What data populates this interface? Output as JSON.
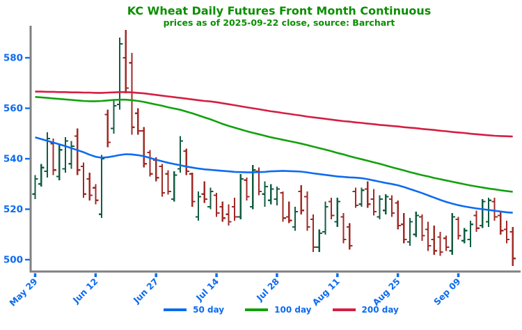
{
  "header": {
    "title": "KC Wheat Daily Futures Front Month Continuous",
    "subtitle": "prices as of 2025-09-22 close, source: Barchart"
  },
  "colors": {
    "title_green": "#0a8f00",
    "axis_blue": "#0d6bf0",
    "ma50": "#0d6bf0",
    "ma100": "#12a10d",
    "ma200": "#d41f42",
    "bar_up": "#115c41",
    "bar_down": "#9e2a25",
    "spine": "#808080"
  },
  "legend": [
    {
      "label": "50 day",
      "color_key": "ma50"
    },
    {
      "label": "100 day",
      "color_key": "ma100"
    },
    {
      "label": "200 day",
      "color_key": "ma200"
    }
  ],
  "chart_data": {
    "type": "ohlc-bar-with-moving-averages",
    "title": "KC Wheat Daily Futures Front Month Continuous",
    "subtitle": "prices as of 2025-09-22 close, source: Barchart",
    "ylabel": "",
    "xlabel": "",
    "grid": false,
    "legend_position": "bottom-center",
    "ylim": [
      494,
      594
    ],
    "yticks": [
      500,
      520,
      540,
      560,
      580
    ],
    "xticks": [
      {
        "label": "May 29",
        "index": 0
      },
      {
        "label": "Jun 12",
        "index": 10
      },
      {
        "label": "Jun 27",
        "index": 20
      },
      {
        "label": "Jul 14",
        "index": 30
      },
      {
        "label": "Jul 28",
        "index": 40
      },
      {
        "label": "Aug 11",
        "index": 50
      },
      {
        "label": "Aug 25",
        "index": 60
      },
      {
        "label": "Sep 09",
        "index": 70
      }
    ],
    "bars_format": [
      "date",
      "open",
      "high",
      "low",
      "close"
    ],
    "bars": [
      [
        "May 29",
        526,
        533.5,
        524,
        532
      ],
      [
        "May 30",
        530,
        538,
        529,
        536.5
      ],
      [
        "Jun 2",
        535,
        550.5,
        532.5,
        548
      ],
      [
        "Jun 3",
        546,
        548,
        533.5,
        535.5
      ],
      [
        "Jun 4",
        533,
        545.5,
        531.5,
        543.5
      ],
      [
        "Jun 5",
        536,
        548.5,
        534.5,
        547
      ],
      [
        "Jun 6",
        538,
        547,
        536,
        545
      ],
      [
        "Jun 9",
        549,
        552,
        533.5,
        535.5
      ],
      [
        "Jun 10",
        537,
        538.5,
        524.5,
        526
      ],
      [
        "Jun 11",
        532,
        534.5,
        523.5,
        525.5
      ],
      [
        "Jun 12",
        528.5,
        530,
        522,
        523.5
      ],
      [
        "Jun 13",
        518,
        541.5,
        516.5,
        540
      ],
      [
        "Jun 16",
        557.5,
        559.5,
        544.5,
        546.5
      ],
      [
        "Jun 17",
        552,
        563,
        550,
        561
      ],
      [
        "Jun 18",
        561.5,
        588,
        559.5,
        585.5
      ],
      [
        "Jun 20",
        580,
        591,
        566,
        568
      ],
      [
        "Jun 23",
        578,
        582,
        549.5,
        552.5
      ],
      [
        "Jun 24",
        558,
        560,
        549.5,
        551
      ],
      [
        "Jun 25",
        551,
        552.5,
        536.5,
        538
      ],
      [
        "Jun 26",
        542.5,
        543.5,
        533,
        534
      ],
      [
        "Jun 27",
        539.5,
        540.5,
        531,
        532.5
      ],
      [
        "Jun 30",
        537,
        538,
        525,
        526.5
      ],
      [
        "Jul 1",
        534,
        535.5,
        525.8,
        527
      ],
      [
        "Jul 2",
        524,
        535,
        523,
        533.5
      ],
      [
        "Jul 3",
        536,
        549,
        534.5,
        547
      ],
      [
        "Jul 7",
        543,
        544,
        533.5,
        535
      ],
      [
        "Jul 8",
        534,
        534.5,
        521,
        523
      ],
      [
        "Jul 9",
        517,
        527,
        515.5,
        525
      ],
      [
        "Jul 10",
        526,
        531,
        522.5,
        524
      ],
      [
        "Jul 11",
        521,
        528.5,
        520,
        527
      ],
      [
        "Jul 14",
        525.5,
        526.5,
        517,
        518.5
      ],
      [
        "Jul 15",
        521,
        523,
        515,
        516.5
      ],
      [
        "Jul 16",
        518,
        522,
        513.5,
        515
      ],
      [
        "Jul 17",
        521,
        524.5,
        515.5,
        517
      ],
      [
        "Jul 18",
        517,
        534,
        516,
        532
      ],
      [
        "Jul 21",
        531.5,
        532.5,
        523.5,
        525
      ],
      [
        "Jul 22",
        521,
        537.5,
        520,
        535.5
      ],
      [
        "Jul 23",
        535,
        536.5,
        525.5,
        527
      ],
      [
        "Jul 24",
        526,
        531,
        521,
        529
      ],
      [
        "Jul 25",
        523.5,
        530,
        522,
        528
      ],
      [
        "Jul 28",
        524,
        529,
        521.5,
        528
      ],
      [
        "Jul 29",
        526.5,
        527,
        515,
        516.5
      ],
      [
        "Jul 30",
        517,
        523,
        514.5,
        515.5
      ],
      [
        "Jul 31",
        513,
        521,
        511.5,
        519
      ],
      [
        "Aug 1",
        527,
        529.5,
        518,
        519.5
      ],
      [
        "Aug 4",
        525,
        527,
        511.5,
        513
      ],
      [
        "Aug 5",
        516,
        518,
        503,
        505
      ],
      [
        "Aug 6",
        505,
        512,
        503,
        510.5
      ],
      [
        "Aug 7",
        511,
        523,
        510,
        521
      ],
      [
        "Aug 8",
        523,
        524.5,
        516,
        517.5
      ],
      [
        "Aug 11",
        515,
        524.5,
        513,
        523
      ],
      [
        "Aug 12",
        517,
        518.5,
        506.5,
        508
      ],
      [
        "Aug 13",
        513,
        514.5,
        504,
        505.5
      ],
      [
        "Aug 14",
        527,
        528.5,
        520.5,
        521.5
      ],
      [
        "Aug 15",
        522,
        528.5,
        521,
        527.5
      ],
      [
        "Aug 18",
        528,
        531,
        520.5,
        522
      ],
      [
        "Aug 19",
        524,
        528,
        517.5,
        519
      ],
      [
        "Aug 20",
        517,
        525.5,
        516,
        524
      ],
      [
        "Aug 21",
        519.5,
        526,
        518,
        525
      ],
      [
        "Aug 22",
        524,
        525.5,
        517,
        518.5
      ],
      [
        "Aug 25",
        522.5,
        523.5,
        512,
        513.5
      ],
      [
        "Aug 26",
        514,
        518.5,
        506.5,
        508
      ],
      [
        "Aug 27",
        507,
        516.5,
        505.5,
        515
      ],
      [
        "Aug 28",
        510,
        519,
        509,
        517.5
      ],
      [
        "Aug 29",
        517,
        518,
        507.5,
        509.5
      ],
      [
        "Sep 2",
        512,
        515,
        503.5,
        505.5
      ],
      [
        "Sep 3",
        508,
        513.5,
        502,
        503.5
      ],
      [
        "Sep 4",
        509,
        511,
        501.5,
        503
      ],
      [
        "Sep 5",
        508.5,
        509.5,
        503.5,
        505
      ],
      [
        "Sep 8",
        503.5,
        518.5,
        502,
        517
      ],
      [
        "Sep 9",
        516,
        517,
        508,
        509.5
      ],
      [
        "Sep 10",
        507.5,
        512.5,
        506.5,
        511.5
      ],
      [
        "Sep 11",
        508,
        515.5,
        505,
        514
      ],
      [
        "Sep 12",
        517.5,
        519.5,
        511,
        512.5
      ],
      [
        "Sep 15",
        513.5,
        524,
        512.5,
        523
      ],
      [
        "Sep 16",
        515,
        524.5,
        513,
        523.5
      ],
      [
        "Sep 17",
        523,
        524.5,
        515.5,
        517
      ],
      [
        "Sep 18",
        517.5,
        519,
        510,
        511.5
      ],
      [
        "Sep 19",
        512,
        515.5,
        506.5,
        508
      ],
      [
        "Sep 22",
        511,
        513,
        497.5,
        500.5
      ]
    ],
    "ma50": [
      548.5,
      547.8,
      547.1,
      546.4,
      545.7,
      545.0,
      544.2,
      543.4,
      542.6,
      541.6,
      540.8,
      540.4,
      540.6,
      541.0,
      541.5,
      541.8,
      541.7,
      541.4,
      541.0,
      540.3,
      539.6,
      539.0,
      538.4,
      537.9,
      537.4,
      536.9,
      536.5,
      536.1,
      535.8,
      535.6,
      535.4,
      535.2,
      535.0,
      534.8,
      534.7,
      534.6,
      534.6,
      534.7,
      534.8,
      535.0,
      535.1,
      535.2,
      535.1,
      535.0,
      534.9,
      534.6,
      534.2,
      533.9,
      533.6,
      533.3,
      533.0,
      532.8,
      532.6,
      532.5,
      532.3,
      531.9,
      531.4,
      530.9,
      530.4,
      530.0,
      529.5,
      528.8,
      528.0,
      527.2,
      526.4,
      525.5,
      524.6,
      523.7,
      522.9,
      522.2,
      521.6,
      521.1,
      520.7,
      520.3,
      520.0,
      519.7,
      519.4,
      519.1,
      518.8,
      518.6
    ],
    "ma100": [
      564.5,
      564.3,
      564.1,
      563.9,
      563.7,
      563.5,
      563.3,
      563.1,
      562.9,
      562.8,
      562.8,
      562.9,
      563.1,
      563.3,
      563.4,
      563.4,
      563.2,
      562.9,
      562.5,
      562.0,
      561.5,
      561.0,
      560.4,
      559.9,
      559.4,
      558.7,
      558.0,
      557.2,
      556.4,
      555.6,
      554.7,
      553.8,
      553.0,
      552.3,
      551.6,
      550.9,
      550.3,
      549.7,
      549.1,
      548.5,
      548.0,
      547.5,
      547.0,
      546.5,
      546.0,
      545.4,
      544.8,
      544.2,
      543.6,
      543.0,
      542.3,
      541.7,
      541.0,
      540.4,
      539.8,
      539.2,
      538.6,
      538.0,
      537.3,
      536.6,
      536.0,
      535.4,
      534.7,
      534.1,
      533.5,
      533.0,
      532.4,
      531.9,
      531.4,
      530.9,
      530.4,
      529.9,
      529.4,
      529.0,
      528.6,
      528.2,
      527.9,
      527.5,
      527.2,
      526.9
    ],
    "ma200": [
      566.6,
      566.6,
      566.5,
      566.5,
      566.4,
      566.4,
      566.3,
      566.3,
      566.2,
      566.2,
      566.1,
      566.1,
      566.2,
      566.3,
      566.4,
      566.4,
      566.3,
      566.1,
      565.9,
      565.6,
      565.3,
      565.0,
      564.7,
      564.4,
      564.1,
      563.8,
      563.5,
      563.2,
      562.9,
      562.7,
      562.4,
      562.0,
      561.6,
      561.2,
      560.8,
      560.4,
      560.0,
      559.6,
      559.2,
      558.8,
      558.5,
      558.1,
      557.8,
      557.4,
      557.1,
      556.7,
      556.4,
      556.1,
      555.8,
      555.5,
      555.2,
      554.9,
      554.7,
      554.4,
      554.2,
      553.9,
      553.7,
      553.4,
      553.2,
      553.0,
      552.8,
      552.5,
      552.3,
      552.1,
      551.8,
      551.6,
      551.4,
      551.1,
      550.9,
      550.6,
      550.4,
      550.2,
      549.9,
      549.7,
      549.5,
      549.3,
      549.1,
      549.0,
      548.9,
      548.8
    ]
  }
}
